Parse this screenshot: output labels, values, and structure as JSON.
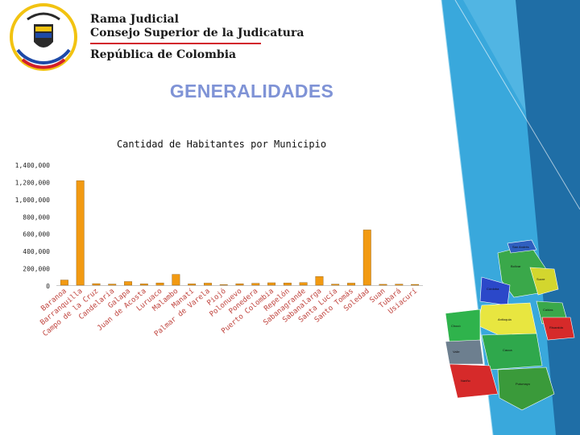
{
  "header": {
    "org_line1": "Rama Judicial",
    "org_line2": "Consejo Superior de la Judicatura",
    "org_line3": "República de Colombia"
  },
  "slide_title": "GENERALIDADES",
  "colors": {
    "bar": "#f29a12",
    "title": "#7f93d6",
    "rule": "#d21f2b"
  },
  "chart_data": {
    "type": "bar",
    "title": "Cantidad de Habitantes por Municipio",
    "ylim": [
      0,
      1400000
    ],
    "yticks": [
      "0",
      "200,000",
      "400,000",
      "600,000",
      "800,000",
      "1,000,000",
      "1,200,000",
      "1,400,000"
    ],
    "grid": false,
    "categories": [
      "Baranoa",
      "Barranquilla",
      "Campo de la Cruz",
      "Candelaria",
      "Galapa",
      "Juan de Acosta",
      "Luruaco",
      "Malambo",
      "Manatí",
      "Palmar de Varela",
      "Piojó",
      "Polonuevo",
      "Ponedera",
      "Puerto Colombia",
      "Repelón",
      "Sabanagrande",
      "Sabanalarga",
      "Santa Lucía",
      "Santo Tomás",
      "Soledad",
      "Suan",
      "Tubará",
      "Usiacurí"
    ],
    "values": [
      60000,
      1210000,
      18000,
      13000,
      42000,
      15000,
      26000,
      125000,
      15000,
      24000,
      6000,
      17000,
      22000,
      28000,
      26000,
      30000,
      100000,
      12000,
      24000,
      640000,
      10000,
      12000,
      9000
    ]
  },
  "map": {
    "regions": [
      {
        "label": "Bolívar",
        "color": "#3aa84a"
      },
      {
        "label": "San Andrés",
        "color": "#2f5fbf"
      },
      {
        "label": "Sucre",
        "color": "#d3d62e"
      },
      {
        "label": "Córdoba",
        "color": "#2b48c9"
      },
      {
        "label": "Antioquia",
        "color": "#e8e640"
      },
      {
        "label": "Chocó",
        "color": "#2fb34c"
      },
      {
        "label": "Caldas",
        "color": "#3aa84a"
      },
      {
        "label": "Risaralda",
        "color": "#d62a2a"
      },
      {
        "label": "Valle",
        "color": "#6d7f8f"
      },
      {
        "label": "Cauca",
        "color": "#2fa84c"
      },
      {
        "label": "Nariño",
        "color": "#d62a2a"
      },
      {
        "label": "Putumayo",
        "color": "#3a9a3a"
      }
    ]
  }
}
